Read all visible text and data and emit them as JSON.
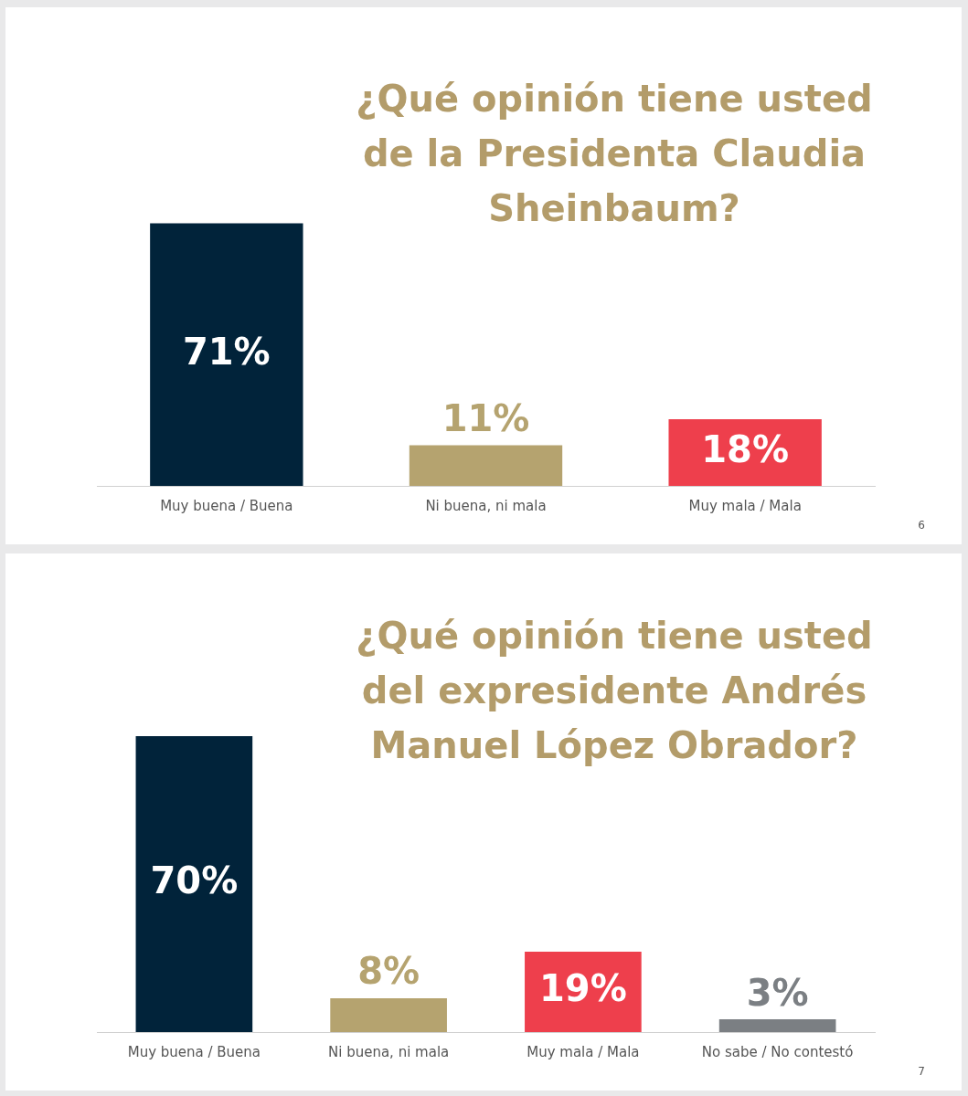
{
  "chart_data": [
    {
      "type": "bar",
      "title": "¿Qué opinión tiene usted de la Presidenta Claudia Sheinbaum?",
      "categories": [
        "Muy buena / Buena",
        "Ni buena, ni mala",
        "Muy mala / Mala"
      ],
      "values": [
        71,
        11,
        18
      ],
      "colors": [
        "#01233a",
        "#b5a36f",
        "#ee3f4c"
      ],
      "value_labels": [
        "71%",
        "11%",
        "18%"
      ],
      "legend": false,
      "grid": false,
      "tick_labels": "x",
      "annotations": [
        "6"
      ]
    },
    {
      "type": "bar",
      "title": "¿Qué opinión tiene usted del expresidente Andrés Manuel López Obrador?",
      "categories": [
        "Muy buena / Buena",
        "Ni buena, ni mala",
        "Muy mala / Mala",
        "No sabe / No contestó"
      ],
      "values": [
        70,
        8,
        19,
        3
      ],
      "colors": [
        "#01233a",
        "#b5a36f",
        "#ee3f4c",
        "#7b7f83"
      ],
      "value_labels": [
        "70%",
        "8%",
        "19%",
        "3%"
      ],
      "legend": false,
      "grid": false,
      "tick_labels": "x",
      "annotations": [
        "7"
      ]
    }
  ]
}
